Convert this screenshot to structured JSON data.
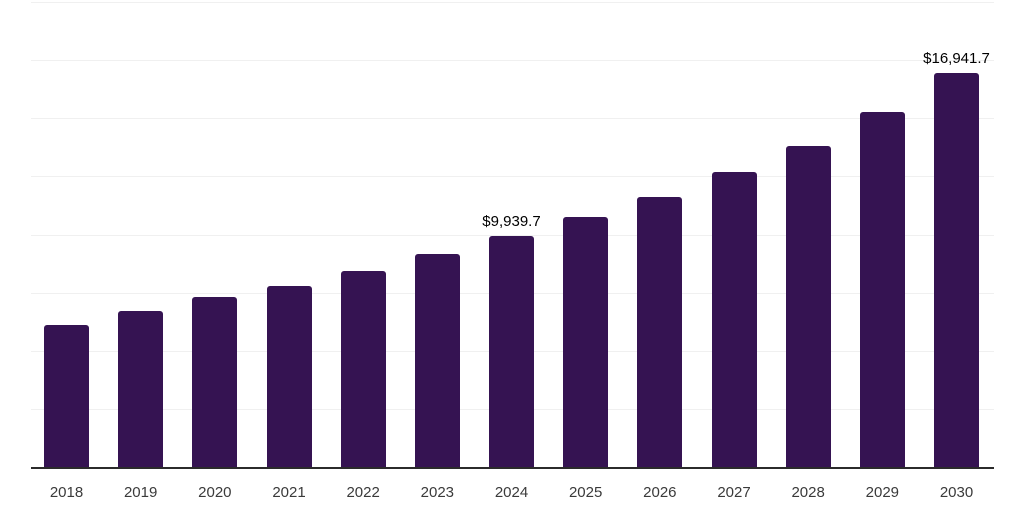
{
  "chart_data": {
    "type": "bar",
    "title": "",
    "xlabel": "",
    "ylabel": "",
    "categories": [
      "2018",
      "2019",
      "2020",
      "2021",
      "2022",
      "2023",
      "2024",
      "2025",
      "2026",
      "2027",
      "2028",
      "2029",
      "2030"
    ],
    "values": [
      6100,
      6700,
      7300,
      7800,
      8450,
      9150,
      9939.7,
      10750,
      11600,
      12700,
      13800,
      15250,
      16941.7
    ],
    "value_labels": [
      {
        "category": "2024",
        "text": "$9,939.7"
      },
      {
        "category": "2030",
        "text": "$16,941.7"
      }
    ],
    "ylim": [
      0,
      20000
    ],
    "gridline_interval": 2500,
    "grid": true,
    "legend": false,
    "y_tick_labels_visible": false,
    "colors": {
      "bar": "#351352",
      "gridline": "#f0f0f0",
      "axis": "#2b2b2b",
      "value_label": "#000000",
      "tick_label": "#3a3a3a",
      "background": "#ffffff"
    }
  }
}
